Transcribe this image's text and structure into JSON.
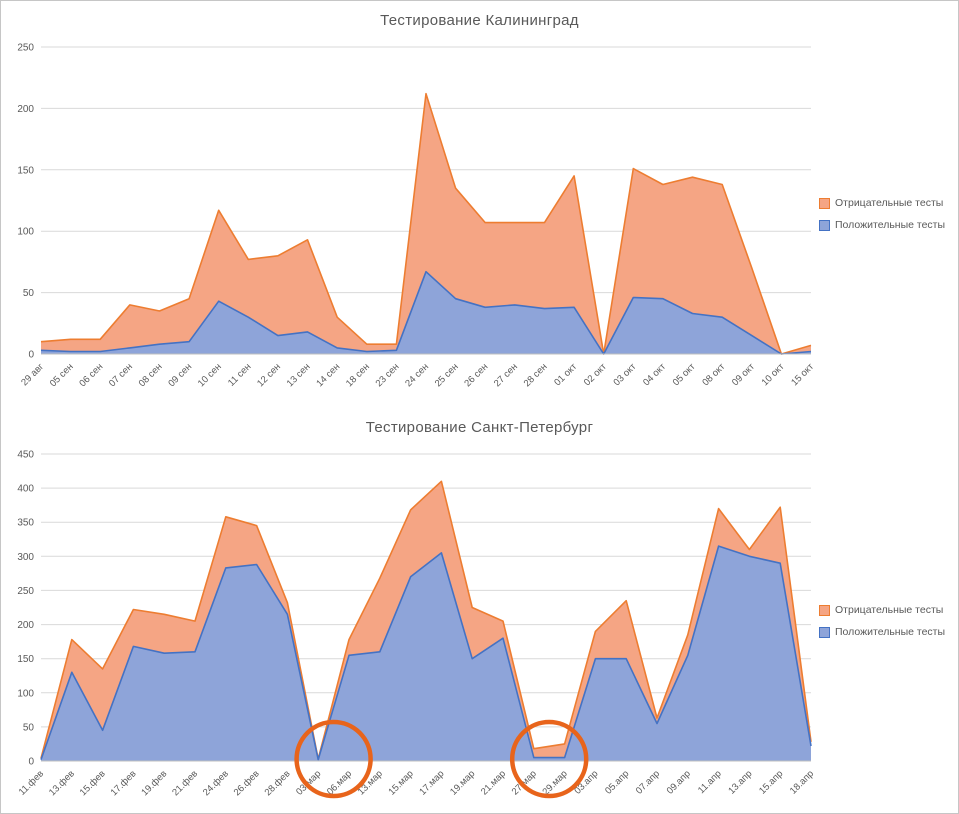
{
  "colors": {
    "negative_fill": "#f5a584",
    "negative_stroke": "#ed7d31",
    "positive_fill": "#8ea4d9",
    "positive_stroke": "#4472c4",
    "grid": "#d9d9d9",
    "axis_line": "#bfbfbf",
    "axis_text": "#595959",
    "title_text": "#595959",
    "annotation": "#e8641b"
  },
  "chart_data": [
    {
      "type": "area",
      "stacked": true,
      "title": "Тестирование  Калининград",
      "ylim": [
        0,
        250
      ],
      "ystep": 50,
      "grid": true,
      "legend_position": "right",
      "legend": [
        "Отрицательные тесты",
        "Положительные тесты"
      ],
      "categories": [
        "29 авг",
        "05 сен",
        "06 сен",
        "07 сен",
        "08 сен",
        "09 сен",
        "10 сен",
        "11 сен",
        "12 сен",
        "13 сен",
        "14 сен",
        "18 сен",
        "23 сен",
        "24 сен",
        "25 сен",
        "26 сен",
        "27 сен",
        "28 сен",
        "01 окт",
        "02 окт",
        "03 окт",
        "04 окт",
        "05 окт",
        "08 окт",
        "09 окт",
        "10 окт",
        "15 окт"
      ],
      "series": [
        {
          "name": "Положительные тесты",
          "values": [
            3,
            2,
            2,
            5,
            8,
            10,
            43,
            30,
            15,
            18,
            5,
            2,
            3,
            67,
            45,
            38,
            40,
            37,
            38,
            0,
            46,
            45,
            33,
            30,
            15,
            0,
            2
          ]
        },
        {
          "name": "Отрицательные тесты",
          "values": [
            7,
            10,
            10,
            35,
            27,
            35,
            74,
            47,
            65,
            75,
            25,
            6,
            5,
            145,
            90,
            69,
            67,
            70,
            107,
            0,
            105,
            93,
            111,
            108,
            55,
            0,
            5
          ]
        }
      ],
      "annotations": []
    },
    {
      "type": "area",
      "stacked": true,
      "title": "Тестирование  Санкт-Петербург",
      "ylim": [
        0,
        450
      ],
      "ystep": 50,
      "grid": true,
      "legend_position": "right",
      "legend": [
        "Отрицательные тесты",
        "Положительные тесты"
      ],
      "categories": [
        "11.фев",
        "13.фев",
        "15.фев",
        "17.фев",
        "19.фев",
        "21.фев",
        "24.фев",
        "26.фев",
        "28.фев",
        "03.мар",
        "06.мар",
        "13.мар",
        "15.мар",
        "17.мар",
        "19.мар",
        "21.мар",
        "27.мар",
        "29.мар",
        "03.апр",
        "05.апр",
        "07.апр",
        "09.апр",
        "11.апр",
        "13.апр",
        "15.апр",
        "18.апр"
      ],
      "series": [
        {
          "name": "Положительные тесты",
          "values": [
            2,
            130,
            45,
            168,
            158,
            160,
            283,
            288,
            215,
            2,
            155,
            160,
            270,
            305,
            150,
            180,
            5,
            5,
            150,
            150,
            55,
            155,
            315,
            300,
            290,
            22
          ]
        },
        {
          "name": "Отрицательные тесты",
          "values": [
            2,
            48,
            90,
            54,
            57,
            45,
            75,
            57,
            17,
            1,
            23,
            108,
            98,
            105,
            75,
            25,
            13,
            20,
            40,
            85,
            8,
            30,
            55,
            10,
            82,
            6
          ]
        }
      ],
      "annotations": [
        {
          "shape": "circle",
          "between": [
            "03.мар",
            "06.мар"
          ]
        },
        {
          "shape": "circle",
          "between": [
            "27.мар",
            "29.мар"
          ]
        }
      ]
    }
  ]
}
